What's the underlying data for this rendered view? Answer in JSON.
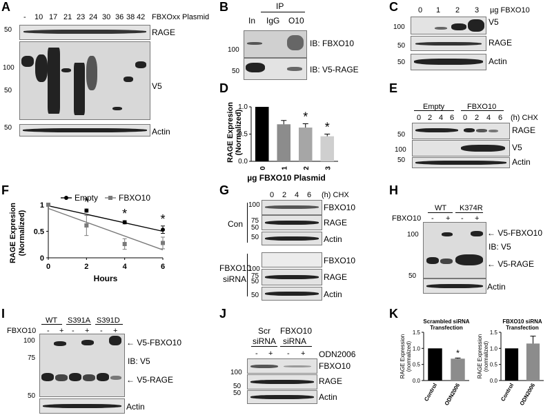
{
  "panels": {
    "A": {
      "label": "A",
      "lanes": [
        "-",
        "10",
        "17",
        "21",
        "23",
        "24",
        "30",
        "36",
        "38",
        "42"
      ],
      "lane_title": "FBXOxx Plasmid",
      "blots": [
        "RAGE",
        "V5",
        "Actin"
      ],
      "markers": [
        "50",
        "100",
        "50",
        "50"
      ]
    },
    "B": {
      "label": "B",
      "ip": "IP",
      "lanes": [
        "In",
        "IgG",
        "O10"
      ],
      "blots": [
        "IB: FBXO10",
        "IB: V5-RAGE"
      ],
      "markers": [
        "100",
        "50"
      ]
    },
    "C": {
      "label": "C",
      "lanes": [
        "0",
        "1",
        "2",
        "3"
      ],
      "lane_title": "µg FBXO10",
      "blots": [
        "V5",
        "RAGE",
        "Actin"
      ],
      "markers": [
        "100",
        "50",
        "50"
      ]
    },
    "D": {
      "label": "D",
      "ylabel": [
        "RAGE Expresion",
        "(Normalized)"
      ],
      "xlabel": "µg FBXO10 Plasmid",
      "star": "*"
    },
    "E": {
      "label": "E",
      "groups": [
        "Empty",
        "FBXO10"
      ],
      "lanes": [
        "0",
        "2",
        "4",
        "6",
        "0",
        "2",
        "4",
        "6"
      ],
      "unit": "(h) CHX",
      "blots": [
        "RAGE",
        "V5",
        "Actin"
      ],
      "markers": [
        "50",
        "100",
        "50"
      ]
    },
    "F": {
      "label": "F",
      "ylabel": [
        "RAGE Expresion",
        "(Normalized)"
      ],
      "xlabel": "Hours",
      "legend": [
        "Empty",
        "FBXO10"
      ],
      "star": "*"
    },
    "G": {
      "label": "G",
      "lanes": [
        "0",
        "2",
        "4",
        "6"
      ],
      "unit": "(h)  CHX",
      "groups": [
        "Con",
        "FBXO10",
        "siRNA"
      ],
      "blots": [
        "FBXO10",
        "RAGE",
        "Actin",
        "FBXO10",
        "RAGE",
        "Actin"
      ],
      "markers": [
        "100",
        "75",
        "50",
        "50",
        "100",
        "75",
        "50",
        "50"
      ]
    },
    "H": {
      "label": "H",
      "groups": [
        "WT",
        "K374R"
      ],
      "row": "FBXO10",
      "signs": [
        "-",
        "+",
        "-",
        "+"
      ],
      "annot": [
        "← V5-FBXO10",
        "IB: V5",
        "← V5-RAGE"
      ],
      "blots": [
        "Actin"
      ],
      "markers": [
        "100",
        "50"
      ]
    },
    "I": {
      "label": "I",
      "groups": [
        "WT",
        "S391A",
        "S391D"
      ],
      "row": "FBXO10",
      "signs": [
        "-",
        "+",
        "-",
        "+",
        "-",
        "+"
      ],
      "annot": [
        "← V5-FBXO10",
        "IB: V5",
        "← V5-RAGE"
      ],
      "blots": [
        "Actin"
      ],
      "markers": [
        "100",
        "75",
        "50"
      ]
    },
    "J": {
      "label": "J",
      "groups": [
        "Scr",
        "siRNA",
        "FBXO10",
        "siRNA"
      ],
      "row": "ODN2006",
      "signs": [
        "-",
        "+",
        "-",
        "+"
      ],
      "blots": [
        "FBXO10",
        "RAGE",
        "Actin"
      ],
      "markers": [
        "100",
        "50",
        "50"
      ]
    },
    "K": {
      "label": "K",
      "charts": [
        {
          "title": [
            "Scrambled siRNA",
            "Transfection"
          ],
          "ylabel": [
            "RAGE Expression",
            "(normalized)"
          ],
          "star": "*"
        },
        {
          "title": [
            "FBXO10 siRNA",
            "Transfection"
          ],
          "ylabel": [
            "RAGE Expression",
            "(normalized)"
          ],
          "star": ""
        }
      ]
    }
  },
  "chart_data": [
    {
      "panel": "D",
      "type": "bar",
      "categories": [
        "0",
        "1",
        "2",
        "3"
      ],
      "values": [
        1.0,
        0.68,
        0.62,
        0.46
      ],
      "errors": [
        0,
        0.07,
        0.07,
        0.04
      ],
      "significant": [
        false,
        false,
        true,
        true
      ],
      "colors": [
        "#000000",
        "#8c8c8c",
        "#a6a6a6",
        "#cfcfcf"
      ],
      "ylim": [
        0,
        1.0
      ],
      "yticks": [
        "0.0",
        "0.5",
        "1.0"
      ],
      "xlabel": "µg FBXO10 Plasmid",
      "ylabel": "RAGE Expresion (Normalized)"
    },
    {
      "panel": "F",
      "type": "line",
      "x": [
        0,
        2,
        4,
        6
      ],
      "series": [
        {
          "name": "Empty",
          "values": [
            1.0,
            0.89,
            0.67,
            0.53
          ],
          "errors": [
            0,
            0.03,
            0.03,
            0.07
          ],
          "color": "#000000",
          "marker": "circle"
        },
        {
          "name": "FBXO10",
          "values": [
            1.0,
            0.61,
            0.26,
            0.28
          ],
          "errors": [
            0,
            0.19,
            0.1,
            0.11
          ],
          "color": "#7a7a7a",
          "marker": "square"
        }
      ],
      "trend": {
        "Empty": [
          0.98,
          0.5
        ],
        "FBXO10": [
          0.93,
          0.15
        ]
      },
      "significant_x": [
        2,
        4,
        6
      ],
      "xlim": [
        0,
        6
      ],
      "ylim": [
        0,
        1.0
      ],
      "xticks": [
        "0",
        "2",
        "4",
        "6"
      ],
      "yticks": [
        "0",
        "0.5",
        "1"
      ],
      "xlabel": "Hours",
      "ylabel": "RAGE Expresion (Normalized)"
    },
    {
      "panel": "K-left",
      "type": "bar",
      "categories": [
        "Control",
        "ODN2006"
      ],
      "values": [
        1.0,
        0.68
      ],
      "errors": [
        0,
        0.02
      ],
      "colors": [
        "#000000",
        "#8c8c8c"
      ],
      "ylim": [
        0,
        1.5
      ],
      "yticks": [
        "0.0",
        "0.5",
        "1.0",
        "1.5"
      ],
      "title": "Scrambled siRNA Transfection"
    },
    {
      "panel": "K-right",
      "type": "bar",
      "categories": [
        "Control",
        "ODN2006"
      ],
      "values": [
        1.0,
        1.15
      ],
      "errors": [
        0,
        0.23
      ],
      "colors": [
        "#000000",
        "#8c8c8c"
      ],
      "ylim": [
        0,
        1.5
      ],
      "yticks": [
        "0.0",
        "0.5",
        "1.0",
        "1.5"
      ],
      "title": "FBXO10 siRNA Transfection"
    }
  ]
}
